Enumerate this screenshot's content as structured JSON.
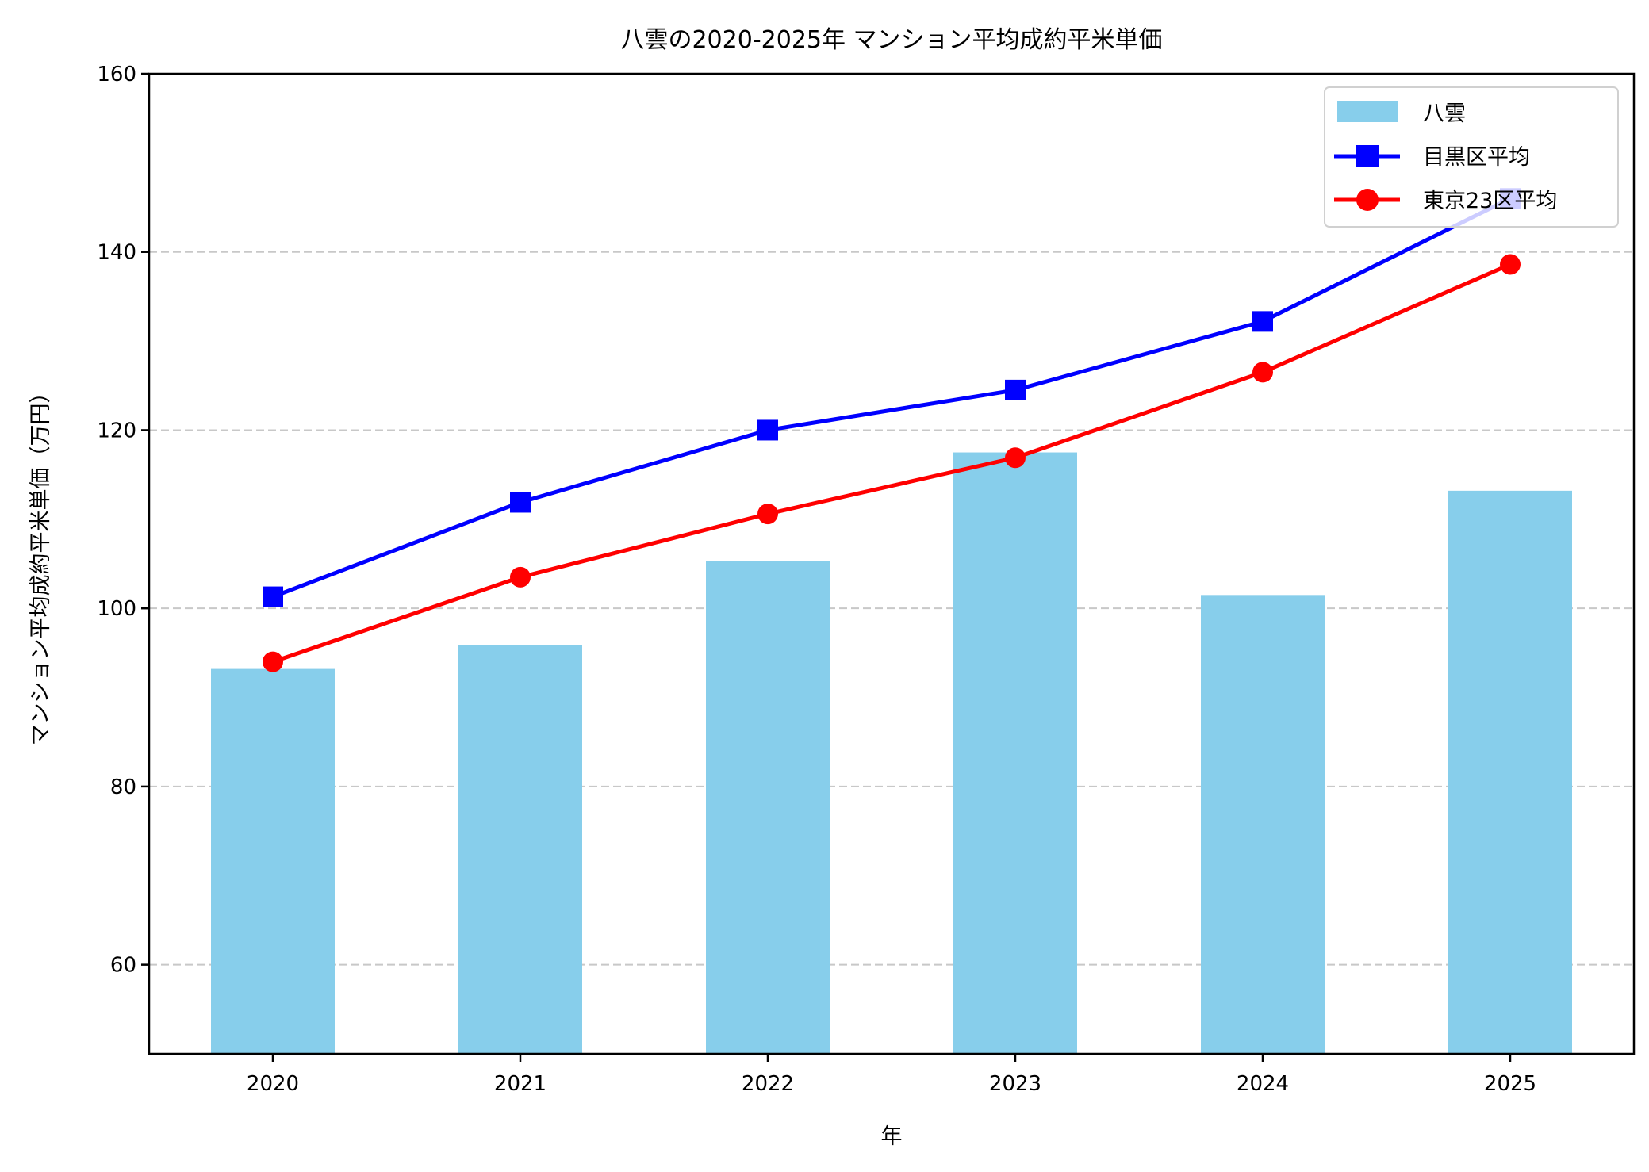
{
  "chart_data": {
    "type": "bar+line",
    "title": "八雲の2020-2025年 マンション平均成約平米単価",
    "xlabel": "年",
    "ylabel": "マンション平均成約平米単価（万円）",
    "categories": [
      "2020",
      "2021",
      "2022",
      "2023",
      "2024",
      "2025"
    ],
    "ylim": [
      50,
      160
    ],
    "yticks": [
      60,
      80,
      100,
      120,
      140,
      160
    ],
    "grid": "y-dashed",
    "legend_position": "top-right",
    "series": [
      {
        "name": "八雲",
        "kind": "bar",
        "color": "#87CEEB",
        "values": [
          93.2,
          95.9,
          105.3,
          117.5,
          101.5,
          113.2
        ]
      },
      {
        "name": "目黒区平均",
        "kind": "line",
        "marker": "square",
        "color": "#0000FF",
        "values": [
          101.3,
          111.9,
          120.0,
          124.5,
          132.2,
          146.0
        ]
      },
      {
        "name": "東京23区平均",
        "kind": "line",
        "marker": "circle",
        "color": "#FF0000",
        "values": [
          94.0,
          103.5,
          110.6,
          116.9,
          126.5,
          138.6
        ]
      }
    ]
  }
}
